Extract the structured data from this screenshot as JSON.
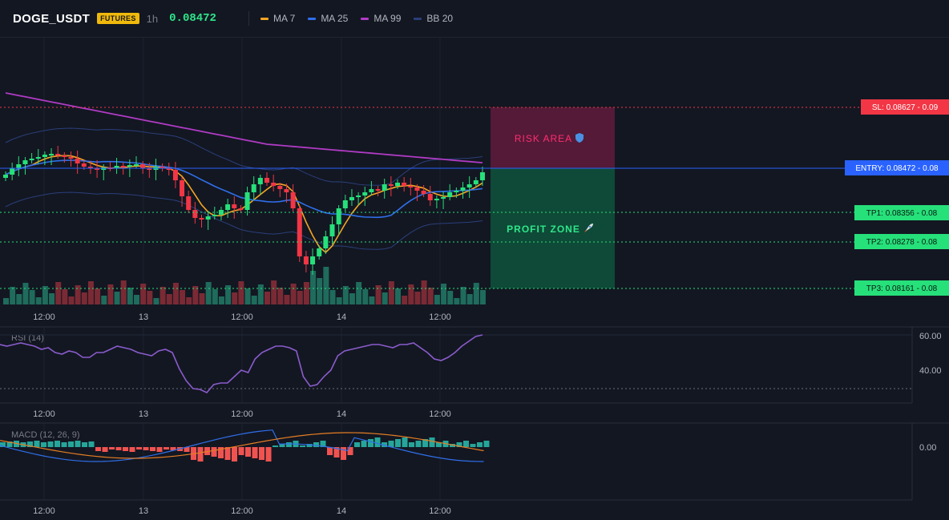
{
  "header": {
    "symbol": "DOGE_USDT",
    "badge": "FUTURES",
    "timeframe": "1h",
    "price": "0.08472",
    "legend": [
      {
        "label": "MA 7",
        "color": "#f5a623"
      },
      {
        "label": "MA 25",
        "color": "#2f6fea"
      },
      {
        "label": "MA 99",
        "color": "#b03bc4"
      },
      {
        "label": "BB 20",
        "color": "#2a3f7a"
      }
    ]
  },
  "levels": {
    "sl": {
      "label": "SL: 0.08627 - 0.09",
      "color": "#f23645"
    },
    "entry": {
      "label": "ENTRY: 0.08472 - 0.08",
      "color": "#2962ff"
    },
    "tp1": {
      "label": "TP1: 0.08356 - 0.08",
      "color": "#26e07a"
    },
    "tp2": {
      "label": "TP2: 0.08278 - 0.08",
      "color": "#26e07a"
    },
    "tp3": {
      "label": "TP3: 0.08161 - 0.08",
      "color": "#26e07a"
    }
  },
  "zones": {
    "risk": {
      "label": "RISK AREA",
      "icon": "shield-icon"
    },
    "profit": {
      "label": "PROFIT ZONE",
      "icon": "rocket-icon"
    }
  },
  "time_axis": [
    "12:00",
    "13",
    "12:00",
    "14",
    "12:00"
  ],
  "rsi": {
    "label": "RSI (14)",
    "axis": [
      "60.00",
      "40.00"
    ]
  },
  "macd": {
    "label": "MACD (12, 26, 9)",
    "axis": [
      "0.00"
    ]
  }
}
